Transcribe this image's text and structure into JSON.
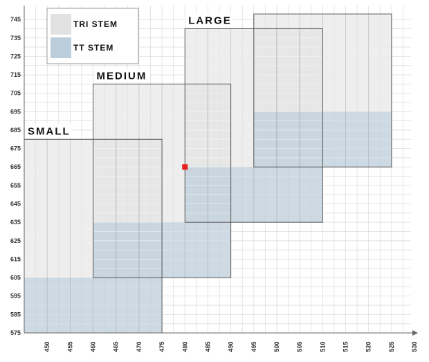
{
  "chart_data": {
    "type": "area",
    "title": "",
    "xlabel": "",
    "ylabel": "",
    "xlim": [
      445,
      530
    ],
    "ylim": [
      575,
      745
    ],
    "x_ticks": [
      450,
      455,
      460,
      465,
      470,
      475,
      480,
      485,
      490,
      495,
      500,
      505,
      510,
      515,
      520,
      525,
      530
    ],
    "y_ticks": [
      575,
      585,
      595,
      605,
      615,
      625,
      635,
      645,
      655,
      665,
      675,
      685,
      695,
      705,
      715,
      725,
      735,
      745
    ],
    "grid": true,
    "legend": {
      "placement": "top-left",
      "items": [
        {
          "key": "tri",
          "label": "TRI STEM",
          "color": "#e2e2e2"
        },
        {
          "key": "tt",
          "label": "TT STEM",
          "color": "#bccddb"
        }
      ]
    },
    "sizes": [
      {
        "name": "SMALL",
        "x_range": [
          445,
          475
        ],
        "tri_stem_y": [
          605,
          680
        ],
        "tt_stem_y": [
          575,
          605
        ]
      },
      {
        "name": "MEDIUM",
        "x_range": [
          460,
          490
        ],
        "tri_stem_y": [
          635,
          710
        ],
        "tt_stem_y": [
          605,
          635
        ]
      },
      {
        "name": "LARGE",
        "x_range": [
          480,
          510
        ],
        "tri_stem_y": [
          665,
          740
        ],
        "tt_stem_y": [
          635,
          665
        ]
      },
      {
        "name": "",
        "x_range": [
          495,
          525
        ],
        "tri_stem_y": [
          695,
          748
        ],
        "tt_stem_y": [
          665,
          695
        ]
      }
    ],
    "marker": {
      "x": 480,
      "y": 665,
      "color": "#e8211d"
    }
  }
}
